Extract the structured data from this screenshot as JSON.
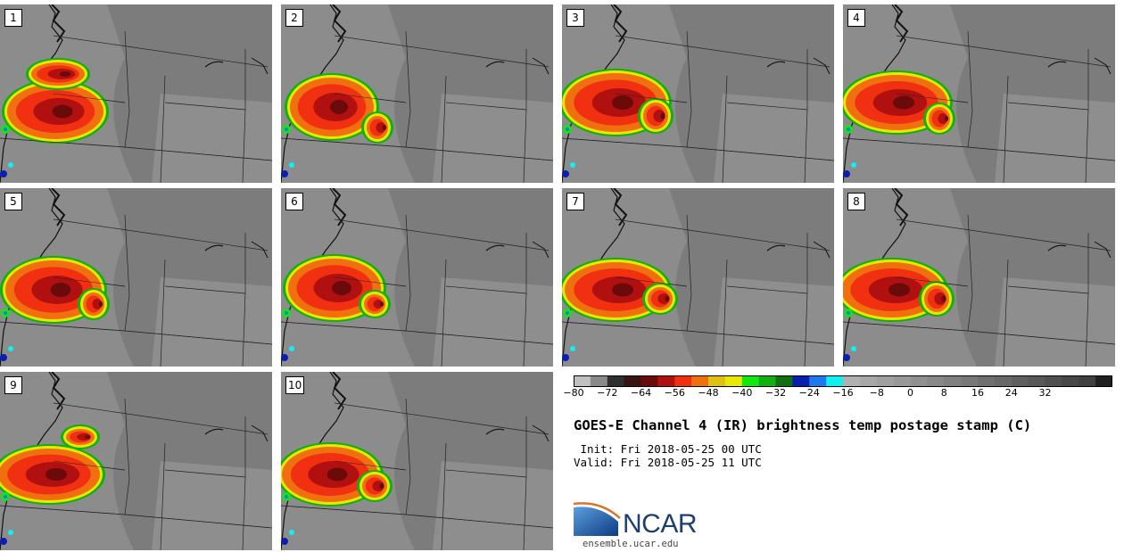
{
  "panels": [
    {
      "label": "1"
    },
    {
      "label": "2"
    },
    {
      "label": "3"
    },
    {
      "label": "4"
    },
    {
      "label": "5"
    },
    {
      "label": "6"
    },
    {
      "label": "7"
    },
    {
      "label": "8"
    },
    {
      "label": "9"
    },
    {
      "label": "10"
    }
  ],
  "colorbar": {
    "ticks": [
      "−80",
      "−72",
      "−64",
      "−56",
      "−48",
      "−40",
      "−32",
      "−24",
      "−16",
      "−8",
      "0",
      "8",
      "16",
      "24",
      "32"
    ],
    "colors": [
      "#c0c0c0",
      "#8a8a8a",
      "#303030",
      "#3a1410",
      "#6a0a0a",
      "#b01010",
      "#f03010",
      "#f07010",
      "#e0c010",
      "#e8e800",
      "#10e810",
      "#10b010",
      "#107010",
      "#0a1eb0",
      "#1e78f0",
      "#10f0f0",
      "#b0b0b0",
      "#a8a8a8",
      "#a0a0a0",
      "#989898",
      "#909090",
      "#888888",
      "#808080",
      "#787878",
      "#707070",
      "#686868",
      "#606060",
      "#585858",
      "#505050",
      "#484848",
      "#404040",
      "#202020"
    ]
  },
  "title": "GOES-E Channel 4 (IR) brightness temp postage stamp (C)",
  "init_line": " Init: Fri 2018-05-25 00 UTC",
  "valid_line": "Valid: Fri 2018-05-25 11 UTC",
  "logo_text": "NCAR",
  "site": "ensemble.ucar.edu"
}
